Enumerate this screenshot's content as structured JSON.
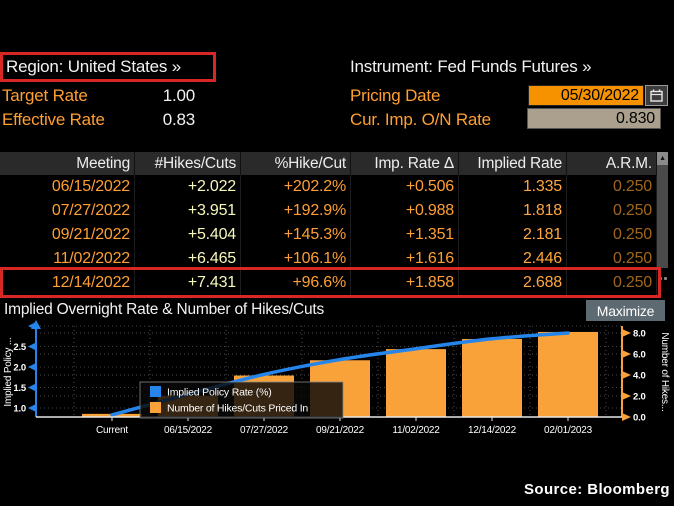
{
  "header": {
    "region_label": "Region: United States »",
    "instrument_label": "Instrument: Fed Funds Futures »",
    "target_rate_label": "Target Rate",
    "target_rate_value": "1.00",
    "effective_rate_label": "Effective Rate",
    "effective_rate_value": "0.83",
    "pricing_date_label": "Pricing Date",
    "pricing_date_value": "05/30/2022",
    "on_rate_label": "Cur. Imp. O/N Rate",
    "on_rate_value": "0.830"
  },
  "table": {
    "columns": [
      "Meeting",
      "#Hikes/Cuts",
      "%Hike/Cut",
      "Imp. Rate Δ",
      "Implied Rate",
      "A.R.M."
    ],
    "rows": [
      [
        "06/15/2022",
        "+2.022",
        "+202.2%",
        "+0.506",
        "1.335",
        "0.250"
      ],
      [
        "07/27/2022",
        "+3.951",
        "+192.9%",
        "+0.988",
        "1.818",
        "0.250"
      ],
      [
        "09/21/2022",
        "+5.404",
        "+145.3%",
        "+1.351",
        "2.181",
        "0.250"
      ],
      [
        "11/02/2022",
        "+6.465",
        "+106.1%",
        "+1.616",
        "2.446",
        "0.250"
      ],
      [
        "12/14/2022",
        "+7.431",
        "+96.6%",
        "+1.858",
        "2.688",
        "0.250"
      ]
    ],
    "highlighted_row_index": 4,
    "scroll_up_glyph": "▲"
  },
  "chart": {
    "title": "Implied Overnight Rate & Number of Hikes/Cuts",
    "maximize_label": "Maximize"
  },
  "chart_data": {
    "type": "bar",
    "subtype": "bar+line dual-axis",
    "categories": [
      "Current",
      "06/15/2022",
      "07/27/2022",
      "09/21/2022",
      "11/02/2022",
      "12/14/2022",
      "02/01/2023"
    ],
    "series": [
      {
        "name": "Implied Policy Rate (%)",
        "type": "line",
        "axis": "left",
        "color": "#2585ea",
        "values": [
          0.83,
          1.335,
          1.818,
          2.181,
          2.446,
          2.688,
          2.83
        ]
      },
      {
        "name": "Number of Hikes/Cuts Priced In",
        "type": "bar",
        "axis": "right",
        "color": "#f9a23a",
        "values": [
          0.3,
          2.022,
          3.951,
          5.404,
          6.465,
          7.431,
          8.1
        ]
      }
    ],
    "left_axis": {
      "title": "Implied Policy ...",
      "ticks": [
        1.0,
        1.5,
        2.0,
        2.5
      ],
      "color": "#2585ea",
      "ylim": [
        0.78,
        3.1
      ]
    },
    "right_axis": {
      "title": "Number of Hikes...",
      "ticks": [
        0.0,
        2.0,
        4.0,
        6.0,
        8.0
      ],
      "color": "#f9a23a",
      "ylim": [
        0,
        9.2
      ]
    },
    "grid": "dotted",
    "legend_position": "inset bottom-left"
  },
  "footer": {
    "source": "Source: Bloomberg"
  },
  "colors": {
    "background": "#000000",
    "accent_orange_text": "#ff9f33",
    "pale_yellow_text": "#f7f7bc",
    "dim_amber_text": "#a1661c",
    "highlight_red": "#d92726",
    "line_blue": "#2585ea",
    "bar_orange": "#f9a23a",
    "input_orange_bg": "#f69200",
    "input_tan_bg": "#aba08d",
    "button_grey": "#5d6a72"
  }
}
